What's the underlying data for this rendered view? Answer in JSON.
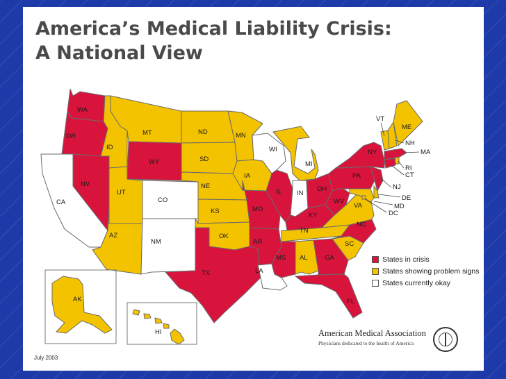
{
  "title": {
    "line1": "America’s Medical Liability Crisis:",
    "line2": "A National View"
  },
  "colors": {
    "crisis": "#d8143c",
    "problem": "#f4c300",
    "ok": "#ffffff"
  },
  "categories": {
    "crisis": "States in crisis",
    "problem": "States showing problem signs",
    "ok": "States currently okay"
  },
  "states": {
    "WA": {
      "label": "WA",
      "status": "crisis"
    },
    "OR": {
      "label": "OR",
      "status": "crisis"
    },
    "CA": {
      "label": "CA",
      "status": "ok"
    },
    "NV": {
      "label": "NV",
      "status": "crisis"
    },
    "ID": {
      "label": "ID",
      "status": "problem"
    },
    "MT": {
      "label": "MT",
      "status": "problem"
    },
    "WY": {
      "label": "WY",
      "status": "crisis"
    },
    "UT": {
      "label": "UT",
      "status": "problem"
    },
    "CO": {
      "label": "CO",
      "status": "ok"
    },
    "AZ": {
      "label": "AZ",
      "status": "problem"
    },
    "NM": {
      "label": "NM",
      "status": "ok"
    },
    "ND": {
      "label": "ND",
      "status": "problem"
    },
    "SD": {
      "label": "SD",
      "status": "problem"
    },
    "NE": {
      "label": "NE",
      "status": "problem"
    },
    "KS": {
      "label": "KS",
      "status": "problem"
    },
    "OK": {
      "label": "OK",
      "status": "problem"
    },
    "TX": {
      "label": "TX",
      "status": "crisis"
    },
    "MN": {
      "label": "MN",
      "status": "problem"
    },
    "IA": {
      "label": "IA",
      "status": "problem"
    },
    "MO": {
      "label": "MO",
      "status": "crisis"
    },
    "AR": {
      "label": "AR",
      "status": "crisis"
    },
    "LA": {
      "label": "LA",
      "status": "ok"
    },
    "WI": {
      "label": "WI",
      "status": "ok"
    },
    "IL": {
      "label": "IL",
      "status": "crisis"
    },
    "MI": {
      "label": "MI",
      "status": "problem"
    },
    "IN": {
      "label": "IN",
      "status": "ok"
    },
    "OH": {
      "label": "OH",
      "status": "crisis"
    },
    "KY": {
      "label": "KY",
      "status": "crisis"
    },
    "TN": {
      "label": "TN",
      "status": "problem"
    },
    "MS": {
      "label": "MS",
      "status": "crisis"
    },
    "AL": {
      "label": "AL",
      "status": "problem"
    },
    "GA": {
      "label": "GA",
      "status": "crisis"
    },
    "FL": {
      "label": "FL",
      "status": "crisis"
    },
    "SC": {
      "label": "SC",
      "status": "problem"
    },
    "NC": {
      "label": "NC",
      "status": "crisis"
    },
    "VA": {
      "label": "VA",
      "status": "problem"
    },
    "WV": {
      "label": "WV",
      "status": "crisis"
    },
    "PA": {
      "label": "PA",
      "status": "crisis"
    },
    "NY": {
      "label": "NY",
      "status": "crisis"
    },
    "NJ": {
      "label": "NJ",
      "status": "crisis"
    },
    "DE": {
      "label": "DE",
      "status": "problem"
    },
    "MD": {
      "label": "MD",
      "status": "problem"
    },
    "DC": {
      "label": "DC",
      "status": "problem"
    },
    "CT": {
      "label": "CT",
      "status": "crisis"
    },
    "RI": {
      "label": "RI",
      "status": "problem"
    },
    "MA": {
      "label": "MA",
      "status": "crisis"
    },
    "VT": {
      "label": "VT",
      "status": "problem"
    },
    "NH": {
      "label": "NH",
      "status": "problem"
    },
    "ME": {
      "label": "ME",
      "status": "problem"
    },
    "AK": {
      "label": "AK",
      "status": "problem"
    },
    "HI": {
      "label": "HI",
      "status": "problem"
    }
  },
  "organization": {
    "name": "American Medical Association",
    "tagline": "Physicians dedicated to the health of America"
  },
  "date": "July 2003"
}
